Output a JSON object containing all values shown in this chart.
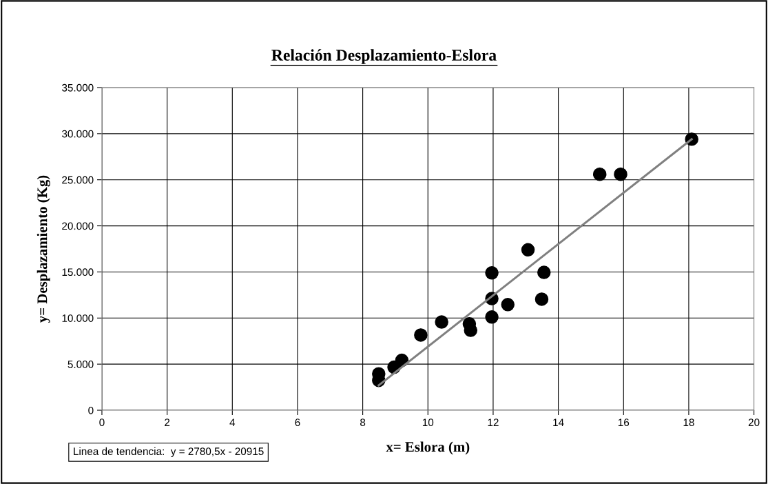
{
  "chart_data": {
    "type": "scatter",
    "title": "Relación Desplazamiento-Eslora",
    "xlabel": "x= Eslora (m)",
    "ylabel": "y= Desplazamiento (Kg)",
    "annotations": [
      "Linea de tendencia:  y = 2780,5x - 20915"
    ],
    "x": [
      8.49,
      8.49,
      8.96,
      9.2,
      9.78,
      10.42,
      11.27,
      11.31,
      11.96,
      11.96,
      11.96,
      12.45,
      13.07,
      13.56,
      13.49,
      15.27,
      15.91,
      18.09
    ],
    "series": [
      {
        "color": "#000000",
        "marker": "circle",
        "values": [
          3240,
          3950,
          4670,
          5420,
          8160,
          9570,
          9360,
          8670,
          14900,
          12110,
          10110,
          11460,
          17400,
          14950,
          12050,
          25600,
          25600,
          29400
        ]
      },
      {
        "type": "line",
        "color": "#808080",
        "marker": "none",
        "line_style": "solid",
        "x": [
          8.49,
          18.09
        ],
        "values": [
          2700,
          29400
        ]
      }
    ],
    "xlim": [
      0,
      20
    ],
    "xticks": [
      0,
      2,
      4,
      6,
      8,
      10,
      12,
      14,
      16,
      18,
      20
    ],
    "ylim": [
      0,
      35000
    ],
    "yticks": [
      0,
      {
        "value": 5000,
        "label": "5.000"
      },
      {
        "value": 10000,
        "label": "10.000"
      },
      {
        "value": 15000,
        "label": "15.000"
      },
      {
        "value": 20000,
        "label": "20.000"
      },
      {
        "value": 25000,
        "label": "25.000"
      },
      {
        "value": 30000,
        "label": "30.000"
      },
      {
        "value": 35000,
        "label": "35.000"
      }
    ],
    "grid": true,
    "legend": false
  }
}
